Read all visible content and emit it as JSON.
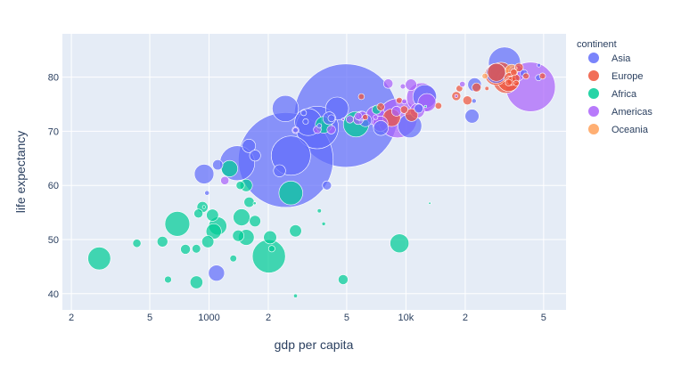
{
  "chart_data": {
    "type": "scatter",
    "subtype": "bubble",
    "title": "",
    "xlabel": "gdp per capita",
    "ylabel": "life expectancy",
    "xscale": "log",
    "xlim": [
      180,
      65000
    ],
    "ylim": [
      37,
      88
    ],
    "grid": true,
    "legend_position": "right",
    "legend_title": "continent",
    "x_ticks": [
      {
        "value": 200,
        "label": "2"
      },
      {
        "value": 500,
        "label": "5"
      },
      {
        "value": 1000,
        "label": "1000"
      },
      {
        "value": 2000,
        "label": "2"
      },
      {
        "value": 5000,
        "label": "5"
      },
      {
        "value": 10000,
        "label": "10k"
      },
      {
        "value": 20000,
        "label": "2"
      },
      {
        "value": 50000,
        "label": "5"
      }
    ],
    "y_ticks": [
      40,
      50,
      60,
      70,
      80
    ],
    "series": [
      {
        "name": "Asia",
        "color": "#636efa",
        "points": [
          [
            4959,
            72.9,
            1319
          ],
          [
            2452,
            64.7,
            1110
          ],
          [
            31656,
            82.6,
            127
          ],
          [
            3541,
            70.7,
            223
          ],
          [
            2605,
            65.5,
            190
          ],
          [
            1391,
            64.1,
            150
          ],
          [
            3190,
            71.7,
            90
          ],
          [
            12452,
            76.4,
            69
          ],
          [
            944,
            62.1,
            47
          ],
          [
            1091,
            43.8,
            32
          ],
          [
            4471,
            74.2,
            65
          ],
          [
            2442,
            74.2,
            85
          ],
          [
            28718,
            80.7,
            49
          ],
          [
            10461,
            71.0,
            70
          ],
          [
            22316,
            78.6,
            23
          ],
          [
            7458,
            70.6,
            27
          ],
          [
            1593,
            67.3,
            22
          ],
          [
            47143,
            79.9,
            4.6
          ],
          [
            4185,
            72.4,
            6.1
          ],
          [
            21655,
            72.8,
            24
          ],
          [
            2280,
            62.7,
            18
          ],
          [
            1713,
            65.5,
            15
          ],
          [
            6223,
            72.0,
            19
          ],
          [
            3970,
            60.0,
            10
          ],
          [
            39725,
            80.7,
            6.9
          ],
          [
            11606,
            74.2,
            10
          ],
          [
            1107,
            63.8,
            13
          ],
          [
            4076,
            72.4,
            20
          ],
          [
            5937,
            72.8,
            12
          ],
          [
            3095,
            71.8,
            3.9
          ],
          [
            3025,
            73.4,
            4.0
          ],
          [
            2749,
            70.2,
            3.1
          ],
          [
            47306,
            82.2,
            1.6
          ],
          [
            976,
            58.6,
            2.6
          ],
          [
            3632,
            71.0,
            2.7
          ],
          [
            22167,
            75.6,
            2.5
          ]
        ]
      },
      {
        "name": "Europe",
        "color": "#ef553b",
        "points": [
          [
            32170,
            79.4,
            82
          ],
          [
            30470,
            80.7,
            61
          ],
          [
            28570,
            80.5,
            58
          ],
          [
            33203,
            79.4,
            60
          ],
          [
            28821,
            80.9,
            40
          ],
          [
            8458,
            72.5,
            38
          ],
          [
            33692,
            79.8,
            16
          ],
          [
            33860,
            79.4,
            10
          ],
          [
            36126,
            79.8,
            8.2
          ],
          [
            34435,
            79.3,
            10
          ],
          [
            22833,
            78.1,
            10
          ],
          [
            18009,
            76.5,
            10
          ],
          [
            40676,
            80.2,
            4.6
          ],
          [
            20510,
            75.7,
            10
          ],
          [
            35278,
            80.9,
            5.4
          ],
          [
            33207,
            79.0,
            5.5
          ],
          [
            10681,
            73.0,
            20
          ],
          [
            9787,
            74.0,
            7.3
          ],
          [
            18679,
            77.9,
            5.4
          ],
          [
            25768,
            77.9,
            2.0
          ],
          [
            9254,
            75.7,
            4.6
          ],
          [
            6211,
            72.6,
            3.8
          ],
          [
            5937,
            76.4,
            4.5
          ],
          [
            7446,
            74.5,
            7.3
          ],
          [
            14619,
            74.7,
            5.5
          ],
          [
            49357,
            80.2,
            4.6
          ],
          [
            37506,
            81.8,
            9.0
          ],
          [
            36181,
            81.7,
            0.3
          ],
          [
            36319,
            78.9,
            4.1
          ]
        ]
      },
      {
        "name": "Africa",
        "color": "#00cc96",
        "points": [
          [
            2013,
            46.9,
            135
          ],
          [
            690,
            52.9,
            76
          ],
          [
            277,
            46.5,
            64
          ],
          [
            5581,
            71.3,
            80
          ],
          [
            2602,
            58.6,
            70
          ],
          [
            9270,
            49.3,
            44
          ],
          [
            1463,
            54.1,
            35
          ],
          [
            3820,
            71.2,
            34
          ],
          [
            1545,
            50.4,
            31
          ],
          [
            1056,
            51.5,
            29
          ],
          [
            1107,
            52.5,
            40
          ],
          [
            2042,
            50.4,
            21
          ],
          [
            1271,
            63.1,
            33
          ],
          [
            926,
            56.0,
            15
          ],
          [
            863,
            42.1,
            20
          ],
          [
            1041,
            54.5,
            18
          ],
          [
            1544,
            60.0,
            19
          ],
          [
            759,
            48.2,
            12
          ],
          [
            986,
            49.6,
            18
          ],
          [
            1598,
            56.9,
            13
          ],
          [
            1712,
            53.4,
            16
          ],
          [
            883,
            54.8,
            10
          ],
          [
            4797,
            42.6,
            12
          ],
          [
            7092,
            74.0,
            10
          ],
          [
            1441,
            60.0,
            8.5
          ],
          [
            2082,
            48.3,
            5.2
          ],
          [
            1328,
            46.5,
            5.7
          ],
          [
            619,
            42.6,
            6.1
          ],
          [
            862,
            48.3,
            9.1
          ],
          [
            580,
            49.6,
            14
          ],
          [
            2749,
            51.6,
            18
          ],
          [
            1407,
            50.7,
            16
          ],
          [
            430,
            49.3,
            8.4
          ],
          [
            3632,
            55.3,
            2.1
          ],
          [
            1704,
            56.7,
            1.1
          ],
          [
            3820,
            52.9,
            1.6
          ],
          [
            13206,
            56.7,
            0.6
          ],
          [
            2748,
            39.6,
            1.8
          ],
          [
            942,
            56.0,
            1.1
          ],
          [
            12570,
            74.6,
            0.4
          ]
        ]
      },
      {
        "name": "Americas",
        "color": "#ab63fa",
        "points": [
          [
            42952,
            78.2,
            301
          ],
          [
            9066,
            72.4,
            190
          ],
          [
            11977,
            76.2,
            108
          ],
          [
            36319,
            80.7,
            33
          ],
          [
            12779,
            75.3,
            40
          ],
          [
            7006,
            72.9,
            44
          ],
          [
            7409,
            71.4,
            29
          ],
          [
            10611,
            78.6,
            16
          ],
          [
            8948,
            73.7,
            12
          ],
          [
            5728,
            72.2,
            13
          ],
          [
            6025,
            72.9,
            9.3
          ],
          [
            9645,
            78.3,
            3.4
          ],
          [
            4173,
            70.3,
            9.1
          ],
          [
            11416,
            73.8,
            26
          ],
          [
            8131,
            78.8,
            11
          ],
          [
            5186,
            72.2,
            6.9
          ],
          [
            3548,
            70.3,
            7.4
          ],
          [
            9809,
            75.5,
            3.2
          ],
          [
            1202,
            60.9,
            8.5
          ],
          [
            19329,
            78.7,
            4.0
          ],
          [
            2749,
            70.2,
            5.7
          ],
          [
            18009,
            76.5,
            1.1
          ],
          [
            5728,
            72.8,
            6.9
          ],
          [
            7008,
            72.6,
            2.8
          ],
          [
            4797,
            72.2,
            0.9
          ]
        ]
      },
      {
        "name": "Oceania",
        "color": "#ffa15a",
        "points": [
          [
            34435,
            81.2,
            20
          ],
          [
            25185,
            80.2,
            4.1
          ]
        ]
      }
    ]
  }
}
